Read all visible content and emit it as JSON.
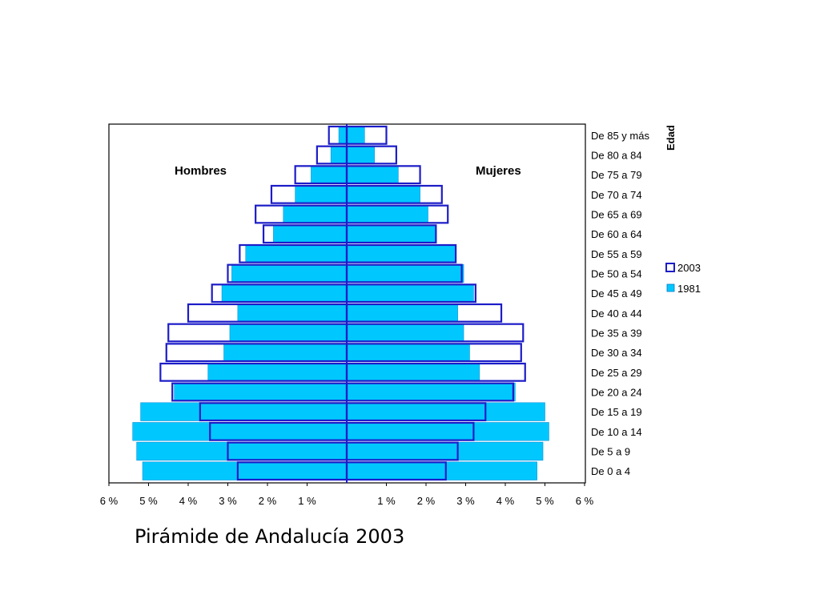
{
  "caption": "Pirámide de Andalucía 2003",
  "chart_data": {
    "type": "bar",
    "orientation": "horizontal",
    "subtype": "population-pyramid",
    "title": "",
    "y_axis_title": "Edad",
    "left_label": "Hombres",
    "right_label": "Mujeres",
    "xlim": [
      -6,
      6
    ],
    "x_ticks": [
      "6 %",
      "5 %",
      "4 %",
      "3 %",
      "2 %",
      "1 %",
      "1 %",
      "2 %",
      "3 %",
      "4 %",
      "5 %",
      "6 %"
    ],
    "categories": [
      "De 85 y más",
      "De 80 a 84",
      "De 75 a 79",
      "De 70 a 74",
      "De 65 a 69",
      "De 60 a 64",
      "De 55 a 59",
      "De 50 a 54",
      "De 45 a 49",
      "De 40 a 44",
      "De 35 a 39",
      "De 30 a 34",
      "De 25 a 29",
      "De 20 a 24",
      "De 15 a 19",
      "De 10 a 14",
      "De 5 a 9",
      "De 0 a 4"
    ],
    "legend_position": "right",
    "series": [
      {
        "name": "2003",
        "style": "outline",
        "color": "#1c1cc8",
        "hombres": [
          0.45,
          0.75,
          1.3,
          1.9,
          2.3,
          2.1,
          2.7,
          3.0,
          3.4,
          4.0,
          4.5,
          4.55,
          4.7,
          4.4,
          3.7,
          3.45,
          3.0,
          2.75
        ],
        "mujeres": [
          1.0,
          1.25,
          1.85,
          2.4,
          2.55,
          2.25,
          2.75,
          2.9,
          3.25,
          3.9,
          4.45,
          4.4,
          4.5,
          4.2,
          3.5,
          3.2,
          2.8,
          2.5
        ]
      },
      {
        "name": "1981",
        "style": "fill",
        "color": "#00c8ff",
        "hombres": [
          0.2,
          0.4,
          0.9,
          1.3,
          1.6,
          1.85,
          2.55,
          2.9,
          3.15,
          2.75,
          2.95,
          3.1,
          3.5,
          4.35,
          5.2,
          5.4,
          5.3,
          5.15
        ],
        "mujeres": [
          0.45,
          0.7,
          1.3,
          1.85,
          2.05,
          2.25,
          2.75,
          2.95,
          3.2,
          2.8,
          2.95,
          3.1,
          3.35,
          4.25,
          5.0,
          5.1,
          4.95,
          4.8
        ]
      }
    ]
  }
}
